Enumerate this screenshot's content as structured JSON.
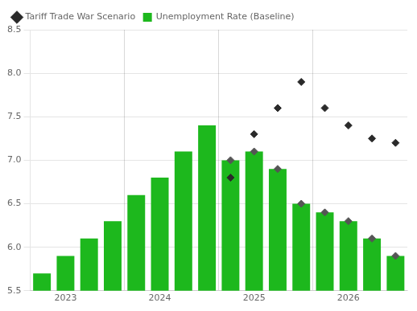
{
  "chart_data": {
    "type": "bar",
    "categories": [
      null,
      "2023",
      null,
      null,
      null,
      "2024",
      null,
      null,
      null,
      "2025",
      null,
      null,
      null,
      "2026",
      null,
      null
    ],
    "series": [
      {
        "name": "Unemployment Rate (Baseline)",
        "type": "bar",
        "color": "#1db81d",
        "values": [
          5.7,
          5.9,
          6.1,
          6.3,
          6.6,
          6.8,
          7.1,
          7.4,
          7.0,
          7.1,
          6.9,
          6.5,
          6.4,
          6.3,
          6.1,
          5.9
        ]
      },
      {
        "type": "scatter",
        "marker": "diamond",
        "color": "#555555",
        "values": [
          null,
          null,
          null,
          null,
          null,
          null,
          null,
          null,
          7.0,
          7.1,
          6.9,
          6.5,
          6.4,
          6.3,
          6.1,
          5.9
        ]
      },
      {
        "name": "Tariff Trade War Scenario",
        "type": "scatter",
        "marker": "diamond",
        "color": "#2a2a2a",
        "values": [
          null,
          null,
          null,
          null,
          null,
          null,
          null,
          null,
          6.8,
          7.3,
          7.6,
          7.9,
          7.6,
          7.4,
          7.25,
          7.2
        ]
      }
    ],
    "ylim": [
      5.5,
      8.5
    ],
    "yticks": [
      5.5,
      {
        "value": 6,
        "label": "6.0"
      },
      6.5,
      {
        "value": 7,
        "label": "7.0"
      },
      7.5,
      {
        "value": 8,
        "label": "8.0"
      },
      8.5
    ],
    "grid": true,
    "legend": "upper left"
  }
}
